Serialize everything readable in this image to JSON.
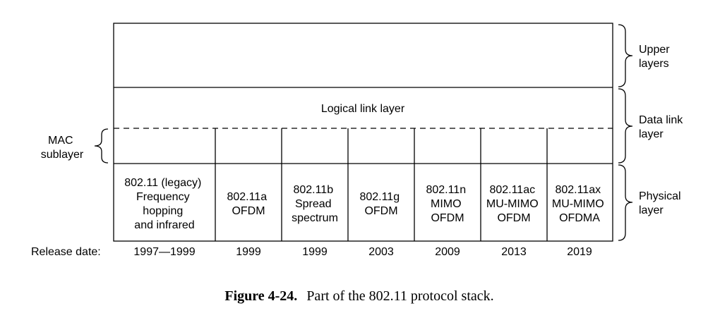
{
  "layers": {
    "upper": "",
    "logical_link": "Logical link layer"
  },
  "side_labels": {
    "upper": [
      "Upper",
      "layers"
    ],
    "data_link": [
      "Data link",
      "layer"
    ],
    "physical": [
      "Physical",
      "layer"
    ],
    "mac": [
      "MAC",
      "sublayer"
    ]
  },
  "release_label": "Release date:",
  "standards": [
    {
      "lines": [
        "802.11 (legacy)",
        "Frequency",
        "hopping",
        "and infrared"
      ],
      "date": "1997—1999"
    },
    {
      "lines": [
        "802.11a",
        "OFDM"
      ],
      "date": "1999"
    },
    {
      "lines": [
        "802.11b",
        "Spread",
        "spectrum"
      ],
      "date": "1999"
    },
    {
      "lines": [
        "802.11g",
        "OFDM"
      ],
      "date": "2003"
    },
    {
      "lines": [
        "802.11n",
        "MIMO",
        "OFDM"
      ],
      "date": "2009"
    },
    {
      "lines": [
        "802.11ac",
        "MU-MIMO",
        "OFDM"
      ],
      "date": "2013"
    },
    {
      "lines": [
        "802.11ax",
        "MU-MIMO",
        "OFDMA"
      ],
      "date": "2019"
    }
  ],
  "caption": {
    "label": "Figure 4-24.",
    "text": "Part of the 802.11 protocol stack."
  }
}
